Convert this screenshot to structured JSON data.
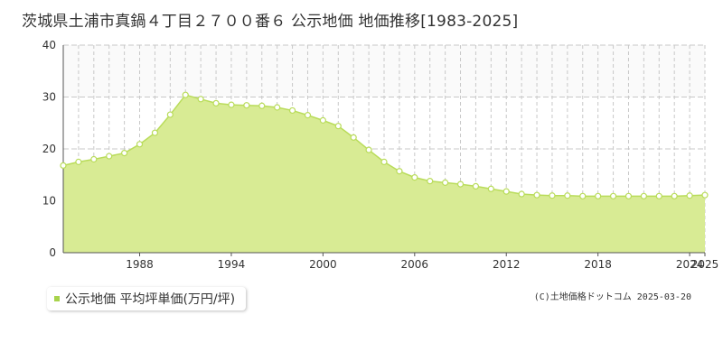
{
  "title": "茨城県土浦市真鍋４丁目２７００番６ 公示地価 地価推移[1983-2025]",
  "credit": "(C)土地価格ドットコム 2025-03-20",
  "legend": {
    "label": "公示地価 平均坪単価(万円/坪)"
  },
  "colors": {
    "area_fill": "#d8eb94",
    "line": "#b9dc5a",
    "marker_stroke": "#b9dc5a",
    "marker_fill": "#ffffff",
    "legend_swatch": "#a8d34c"
  },
  "chart_data": {
    "type": "area",
    "title": "茨城県土浦市真鍋４丁目２７００番６ 公示地価 地価推移[1983-2025]",
    "xlabel": "",
    "ylabel": "",
    "xlim": [
      1983,
      2025
    ],
    "ylim": [
      0,
      40
    ],
    "yticks": [
      0,
      10,
      20,
      30,
      40
    ],
    "xticks": [
      1988,
      1994,
      2000,
      2006,
      2012,
      2018,
      2024,
      2025
    ],
    "grid": true,
    "legend_position": "bottom-left",
    "series": [
      {
        "name": "公示地価 平均坪単価(万円/坪)",
        "x": [
          1983,
          1984,
          1985,
          1986,
          1987,
          1988,
          1989,
          1990,
          1991,
          1992,
          1993,
          1994,
          1995,
          1996,
          1997,
          1998,
          1999,
          2000,
          2001,
          2002,
          2003,
          2004,
          2005,
          2006,
          2007,
          2008,
          2009,
          2010,
          2011,
          2012,
          2013,
          2014,
          2015,
          2016,
          2017,
          2018,
          2019,
          2020,
          2021,
          2022,
          2023,
          2024,
          2025
        ],
        "values": [
          16.8,
          17.5,
          18.0,
          18.6,
          19.2,
          20.9,
          23.1,
          26.6,
          30.4,
          29.6,
          28.8,
          28.5,
          28.4,
          28.3,
          28.0,
          27.4,
          26.5,
          25.5,
          24.4,
          22.2,
          19.8,
          17.5,
          15.7,
          14.5,
          13.8,
          13.5,
          13.2,
          12.8,
          12.3,
          11.8,
          11.3,
          11.1,
          11.0,
          11.0,
          10.9,
          10.9,
          10.9,
          10.9,
          10.9,
          10.9,
          10.9,
          11.0,
          11.1
        ]
      }
    ]
  }
}
